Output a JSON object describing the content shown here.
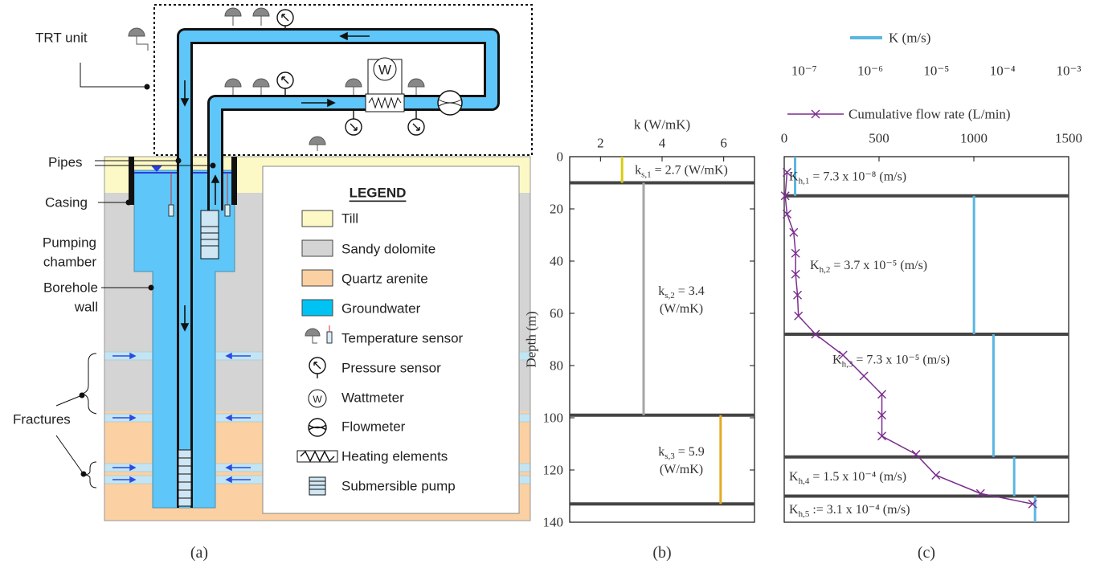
{
  "diagram": {
    "labels": {
      "trt_unit": "TRT unit",
      "pipes": "Pipes",
      "casing": "Casing",
      "pumping_chamber": [
        "Pumping",
        "chamber"
      ],
      "borehole_wall": [
        "Borehole",
        "wall"
      ],
      "fractures": "Fractures"
    },
    "legend": {
      "title": "LEGEND",
      "items": [
        "Till",
        "Sandy dolomite",
        "Quartz arenite",
        "Groundwater",
        "Temperature sensor",
        "Pressure sensor",
        "Wattmeter",
        "Flowmeter",
        "Heating elements",
        "Submersible pump"
      ]
    },
    "wattmeter_symbol": "W",
    "caption": "(a)"
  },
  "chart_data": [
    {
      "type": "layer_profile",
      "caption": "(b)",
      "xlabel": "k (W/mK)",
      "ylabel": "Depth (m)",
      "xlim": [
        1,
        7
      ],
      "xticks": [
        2,
        4,
        6
      ],
      "ylim": [
        0,
        140
      ],
      "yticks": [
        0,
        20,
        40,
        60,
        80,
        100,
        120,
        140
      ],
      "y_inverted": true,
      "boundaries": [
        10,
        99,
        133
      ],
      "layers": {
        "top": [
          0,
          10,
          99
        ],
        "bottom": [
          10,
          99,
          133
        ],
        "values": [
          2.7,
          3.4,
          5.9
        ],
        "colors": [
          "#d8cc10",
          "#a6a6a6",
          "#e2ac22"
        ],
        "label_symbol": "k",
        "label_subscripts": [
          "s,1",
          "s,2",
          "s,3"
        ],
        "value_labels": [
          [
            "= 2.7 (W/mK)"
          ],
          [
            "= 3.4",
            "(W/mK)"
          ],
          [
            "= 5.9",
            "(W/mK)"
          ]
        ]
      }
    },
    {
      "type": "layer_profile",
      "caption": "(c)",
      "xscale": "log",
      "xlim": [
        5e-08,
        0.001
      ],
      "xticks": [
        {
          "value": 1e-07,
          "label": "10⁻⁷"
        },
        {
          "value": 1e-06,
          "label": "10⁻⁶"
        },
        {
          "value": 1e-05,
          "label": "10⁻⁵"
        },
        {
          "value": 0.0001,
          "label": "10⁻⁴"
        },
        {
          "value": 0.001,
          "label": "10⁻³"
        }
      ],
      "ylim": [
        0,
        140
      ],
      "y_inverted": true,
      "boundaries": [
        15,
        68,
        115,
        130
      ],
      "layers": {
        "name": "K (m/s)",
        "color": "#5ab6e2",
        "top": [
          0,
          15,
          68,
          115,
          130
        ],
        "bottom": [
          15,
          68,
          115,
          130,
          140
        ],
        "values": [
          7.3e-08,
          3.7e-05,
          7.3e-05,
          0.00015,
          0.00031
        ],
        "label_symbol": "K",
        "label_subscripts": [
          "h,1",
          "h,2",
          "h,3",
          "h,4",
          "h,5"
        ],
        "value_labels": [
          [
            "= 7.3 x 10⁻⁸ (m/s)"
          ],
          [
            "= 3.7 x 10⁻⁵ (m/s)"
          ],
          [
            "= 7.3 x 10⁻⁵ (m/s)"
          ],
          [
            "= 1.5 x 10⁻⁴ (m/s)"
          ],
          [
            ":= 3.1 x 10⁻⁴ (m/s)"
          ]
        ]
      },
      "secondary": {
        "type": "line",
        "name": "Cumulative flow rate (L/min)",
        "color": "#7b2d8e",
        "xlim": [
          0,
          1500
        ],
        "xticks": [
          0,
          500,
          1000,
          1500
        ],
        "x": [
          15,
          5,
          15,
          50,
          60,
          60,
          70,
          75,
          165,
          310,
          420,
          515,
          515,
          515,
          695,
          800,
          1035,
          1310
        ],
        "y": [
          6,
          15,
          22,
          29,
          37,
          45,
          53,
          61,
          68,
          76,
          84,
          91,
          99,
          107,
          114,
          122,
          129,
          133
        ]
      }
    }
  ]
}
